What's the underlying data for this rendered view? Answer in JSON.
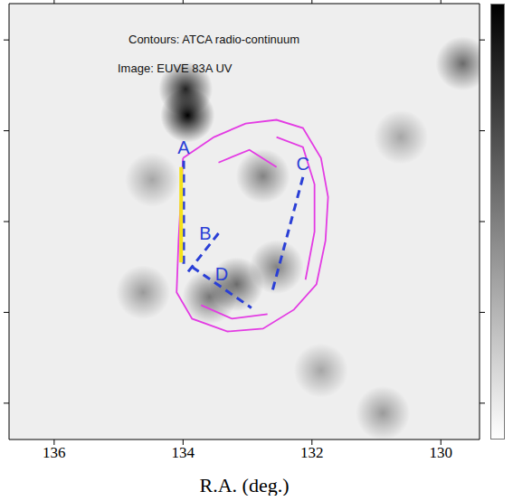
{
  "chart_data": {
    "type": "scatter",
    "x_label": "R.A. (deg.)",
    "xlim": [
      136.7,
      129.4
    ],
    "xticks": [
      136,
      134,
      132,
      130
    ],
    "ylim": [
      -48.4,
      -43.6
    ],
    "yticks": [
      -48,
      -47,
      -46,
      -45,
      -44
    ],
    "tick_labels": "x",
    "grid": false,
    "annotations": [
      "Contours: ATCA radio-continuum",
      "Image: EUVE 83A UV"
    ],
    "image": {
      "color": "#000000",
      "blobs": [
        {
          "x": 133.93,
          "y": -44.83,
          "intensity": 1.0
        },
        {
          "x": 133.96,
          "y": -44.54,
          "intensity": 0.85
        },
        {
          "x": 133.17,
          "y": -46.69,
          "intensity": 0.55
        },
        {
          "x": 132.55,
          "y": -46.5,
          "intensity": 0.45
        },
        {
          "x": 132.76,
          "y": -45.5,
          "intensity": 0.45
        },
        {
          "x": 133.59,
          "y": -46.83,
          "intensity": 0.5
        },
        {
          "x": 129.66,
          "y": -44.26,
          "intensity": 0.55
        },
        {
          "x": 134.62,
          "y": -46.78,
          "intensity": 0.35
        },
        {
          "x": 131.86,
          "y": -47.64,
          "intensity": 0.3
        },
        {
          "x": 130.9,
          "y": -48.11,
          "intensity": 0.35
        },
        {
          "x": 130.62,
          "y": -45.07,
          "intensity": 0.3
        },
        {
          "x": 134.48,
          "y": -45.54,
          "intensity": 0.3
        }
      ]
    },
    "contours": {
      "color": "#e33be3",
      "lines": [
        [
          [
            134.0,
            -45.3
          ],
          [
            133.52,
            -45.07
          ],
          [
            133.03,
            -44.92
          ],
          [
            132.55,
            -44.88
          ],
          [
            132.14,
            -44.97
          ],
          [
            131.86,
            -45.3
          ],
          [
            131.75,
            -45.73
          ],
          [
            131.79,
            -46.21
          ],
          [
            131.93,
            -46.69
          ],
          [
            132.28,
            -46.97
          ],
          [
            132.76,
            -47.18
          ],
          [
            133.31,
            -47.21
          ],
          [
            133.86,
            -47.07
          ],
          [
            134.1,
            -46.78
          ],
          [
            134.07,
            -46.21
          ],
          [
            134.0,
            -45.3
          ]
        ],
        [
          [
            132.55,
            -45.07
          ],
          [
            132.14,
            -45.18
          ],
          [
            131.96,
            -45.59
          ],
          [
            131.96,
            -46.11
          ],
          [
            132.1,
            -46.64
          ]
        ],
        [
          [
            133.45,
            -45.35
          ],
          [
            132.97,
            -45.21
          ],
          [
            132.55,
            -45.4
          ]
        ],
        [
          [
            133.72,
            -46.92
          ],
          [
            133.24,
            -47.07
          ],
          [
            132.69,
            -47.02
          ]
        ]
      ]
    },
    "cuts": [
      {
        "label": "A",
        "color": "#2a3fd6",
        "line_style": "dashed",
        "points": [
          [
            133.99,
            -45.33
          ],
          [
            133.99,
            -46.5
          ]
        ]
      },
      {
        "label": "B",
        "color": "#2a3fd6",
        "line_style": "dashed",
        "points": [
          [
            133.45,
            -46.13
          ],
          [
            133.93,
            -46.56
          ]
        ]
      },
      {
        "label": "C",
        "color": "#2a3fd6",
        "line_style": "dashed",
        "points": [
          [
            132.14,
            -45.51
          ],
          [
            132.62,
            -46.78
          ]
        ]
      },
      {
        "label": "D",
        "color": "#2a3fd6",
        "line_style": "dashed",
        "points": [
          [
            133.86,
            -46.5
          ],
          [
            132.94,
            -46.95
          ]
        ]
      }
    ],
    "highlight": {
      "color": "#f5e21b",
      "line_style": "solid",
      "points": [
        [
          134.03,
          -45.4
        ],
        [
          134.03,
          -46.45
        ]
      ]
    }
  }
}
